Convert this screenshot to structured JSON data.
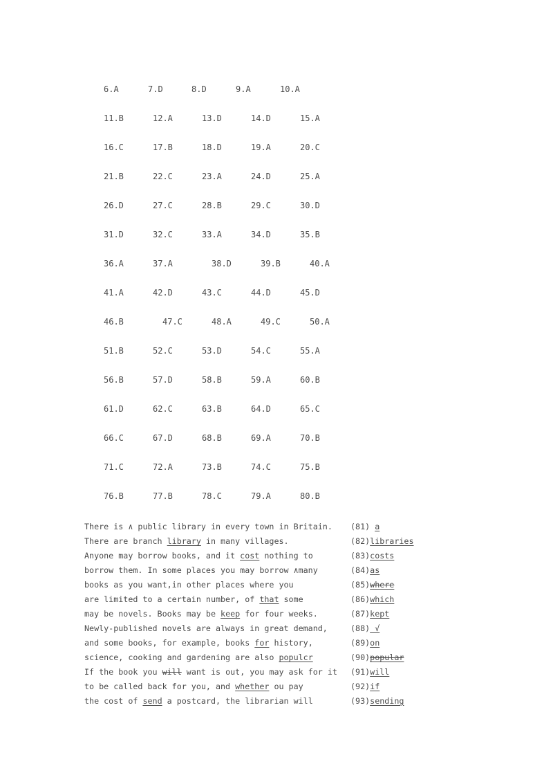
{
  "answers": [
    [
      "6.A",
      "7.D",
      "8.D",
      "9.A",
      "10.A"
    ],
    [
      "11.B",
      "12.A",
      "13.D",
      "14.D",
      "15.A"
    ],
    [
      "16.C",
      "17.B",
      "18.D",
      "19.A",
      "20.C"
    ],
    [
      "21.B",
      "22.C",
      "23.A",
      "24.D",
      "25.A"
    ],
    [
      "26.D",
      "27.C",
      "28.B",
      "29.C",
      "30.D"
    ],
    [
      "31.D",
      "32.C",
      "33.A",
      "34.D",
      "35.B"
    ],
    [
      "36.A",
      "37.A",
      "38.D",
      "39.B",
      "40.A"
    ],
    [
      "41.A",
      "42.D",
      "43.C",
      "44.D",
      "45.D"
    ],
    [
      "46.B",
      "47.C",
      "48.A",
      "49.C",
      "50.A"
    ],
    [
      "51.B",
      "52.C",
      "53.D",
      "54.C",
      "55.A"
    ],
    [
      "56.B",
      "57.D",
      "58.B",
      "59.A",
      "60.B"
    ],
    [
      "61.D",
      "62.C",
      "63.B",
      "64.D",
      "65.C"
    ],
    [
      "66.C",
      "67.D",
      "68.B",
      "69.A",
      "70.B"
    ],
    [
      "71.C",
      "72.A",
      "73.B",
      "74.C",
      "75.B"
    ],
    [
      "76.B",
      "77.B",
      "78.C",
      "79.A",
      "80.B"
    ]
  ],
  "passage": [
    {
      "segments": [
        {
          "text": "There is ∧ public library in every town in Britain."
        }
      ],
      "num": "(81) ",
      "fix": "a",
      "fix_style": "u"
    },
    {
      "segments": [
        {
          "text": "There are branch "
        },
        {
          "text": "library",
          "style": "u"
        },
        {
          "text": " in many villages."
        }
      ],
      "num": "(82)",
      "fix": "libraries",
      "fix_style": "u"
    },
    {
      "segments": [
        {
          "text": "Anyone may borrow books, and it "
        },
        {
          "text": "cost",
          "style": "u"
        },
        {
          "text": " nothing to"
        }
      ],
      "num": "(83)",
      "fix": "costs",
      "fix_style": "u"
    },
    {
      "segments": [
        {
          "text": "borrow them. In some places you may borrow ∧many"
        }
      ],
      "num": "(84)",
      "fix": "as",
      "fix_style": "u"
    },
    {
      "segments": [
        {
          "text": "books as you want,in other places where you"
        }
      ],
      "num": "(85)",
      "fix": "where",
      "fix_style": "s"
    },
    {
      "segments": [
        {
          "text": "are limited to a certain number, of "
        },
        {
          "text": "that",
          "style": "u"
        },
        {
          "text": " some"
        }
      ],
      "num": "(86)",
      "fix": "which",
      "fix_style": "u"
    },
    {
      "segments": [
        {
          "text": "may be novels. Books may be "
        },
        {
          "text": "keep",
          "style": "u"
        },
        {
          "text": " for four weeks."
        }
      ],
      "num": "(87)",
      "fix": "kept",
      "fix_style": "u"
    },
    {
      "segments": [
        {
          "text": "Newly-published novels are always in great demand,"
        }
      ],
      "num": "(88)",
      "fix": " √",
      "fix_style": "u"
    },
    {
      "segments": [
        {
          "text": "and some books, for example, books "
        },
        {
          "text": "for",
          "style": "u"
        },
        {
          "text": " history,"
        }
      ],
      "num": "(89)",
      "fix": "on",
      "fix_style": "u"
    },
    {
      "segments": [
        {
          "text": "science, cooking and gardening are also "
        },
        {
          "text": "populcr",
          "style": "u"
        }
      ],
      "num": "(90)",
      "fix": "popular",
      "fix_style": "s"
    },
    {
      "segments": [
        {
          "text": "If the book you "
        },
        {
          "text": "will",
          "style": "sw"
        },
        {
          "text": " want is out, you may ask for it"
        }
      ],
      "num": "(91)",
      "fix": "will",
      "fix_style": "u"
    },
    {
      "segments": [
        {
          "text": "to be called back for you, and "
        },
        {
          "text": "whether",
          "style": "u"
        },
        {
          "text": " ou pay"
        }
      ],
      "num": "(92)",
      "fix": "if",
      "fix_style": "u"
    },
    {
      "segments": [
        {
          "text": "the cost of "
        },
        {
          "text": "send",
          "style": "u"
        },
        {
          "text": " a postcard, the librarian will"
        }
      ],
      "num": "(93)",
      "fix": "sending",
      "fix_style": "u"
    }
  ]
}
